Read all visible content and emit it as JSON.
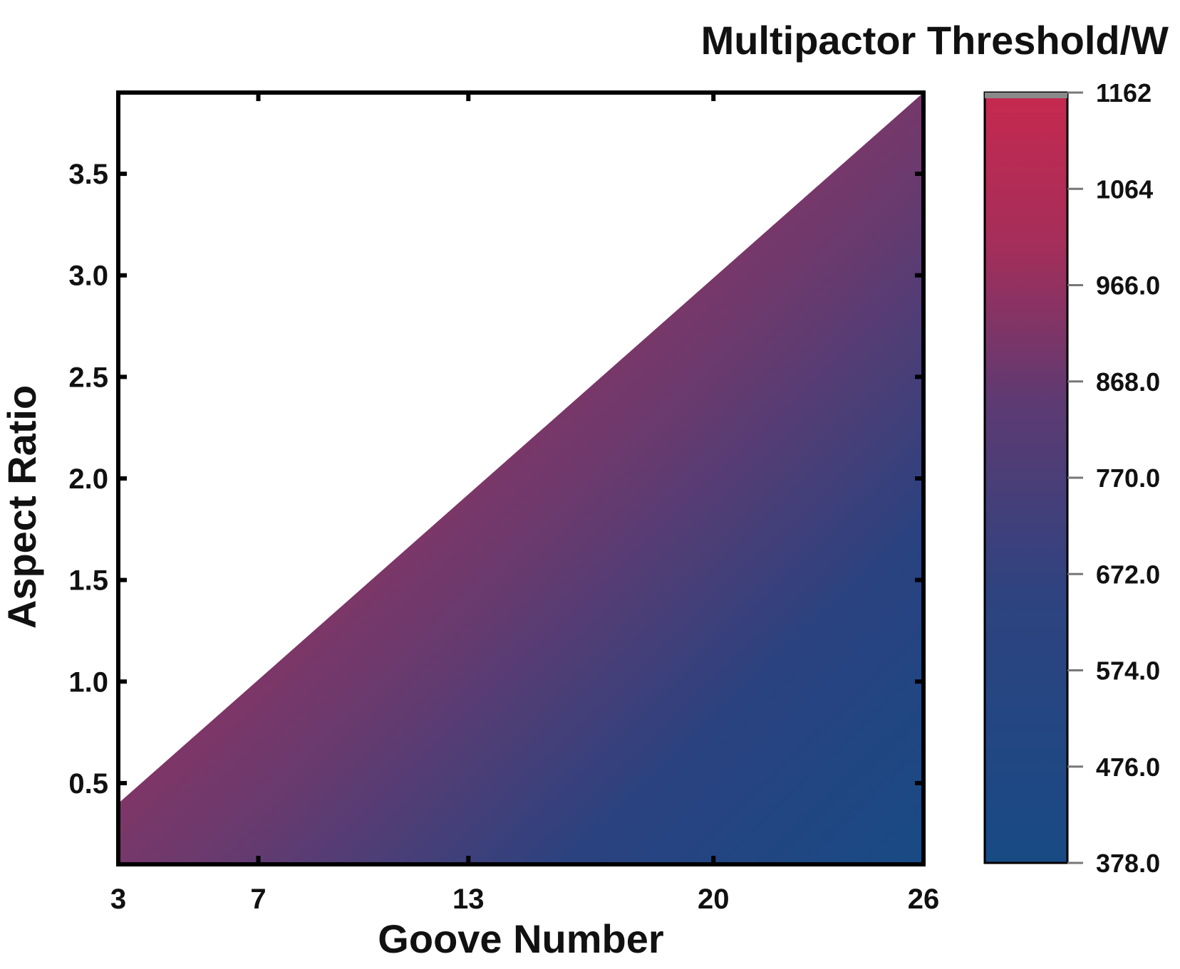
{
  "chart_data": {
    "type": "heatmap",
    "title": "",
    "xlabel": "Goove Number",
    "ylabel": "Aspect Ratio",
    "colorbar_title": "Multipactor Threshold/W",
    "x_ticks": [
      3,
      7,
      13,
      20,
      26
    ],
    "x_tick_labels": [
      "3",
      "7",
      "13",
      "20",
      "26"
    ],
    "y_ticks": [
      0.5,
      1.0,
      1.5,
      2.0,
      2.5,
      3.0,
      3.5
    ],
    "y_tick_labels": [
      "0.5",
      "1.0",
      "1.5",
      "2.0",
      "2.5",
      "3.0",
      "3.5"
    ],
    "xlim": [
      3,
      26
    ],
    "ylim": [
      0.1,
      3.9
    ],
    "data_region": {
      "shape": "triangle",
      "vertices": [
        [
          3,
          0.1
        ],
        [
          26,
          0.1
        ],
        [
          26,
          3.9
        ],
        [
          3,
          0.4
        ]
      ],
      "note_ymax_at_x3": 0.4
    },
    "colorbar": {
      "range": [
        378.0,
        1162
      ],
      "ticks": [
        1162,
        1064,
        966.0,
        868.0,
        770.0,
        672.0,
        574.0,
        476.0,
        378.0
      ],
      "tick_labels": [
        "1162",
        "1064",
        "966.0",
        "868.0",
        "770.0",
        "672.0",
        "574.0",
        "476.0",
        "378.0"
      ],
      "color_low": "#184a84",
      "color_mid": "#6a3a6e",
      "color_high": "#c0264f"
    },
    "grid": false
  }
}
